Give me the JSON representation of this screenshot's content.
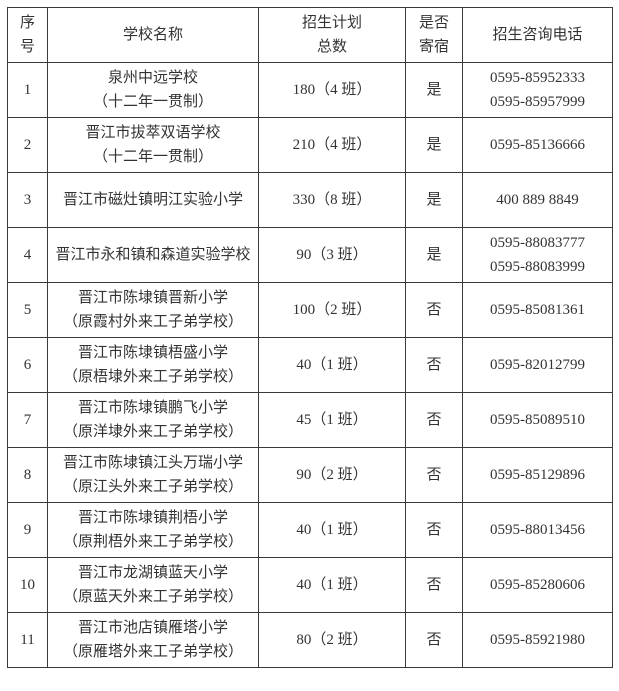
{
  "page": {
    "background_color": "#ffffff",
    "text_color": "#333333",
    "border_color": "#3a3a3a"
  },
  "table": {
    "headers": [
      {
        "key": "index",
        "label": "序\n号"
      },
      {
        "key": "school",
        "label": "学校名称"
      },
      {
        "key": "plan",
        "label": "招生计划\n总数"
      },
      {
        "key": "boarding",
        "label": "是否\n寄宿"
      },
      {
        "key": "phone",
        "label": "招生咨询电话"
      }
    ],
    "rows": [
      {
        "index": "1",
        "school": "泉州中远学校\n（十二年一贯制）",
        "plan": "180（4 班）",
        "boarding": "是",
        "phone": "0595-85952333\n0595-85957999",
        "phone_top_aligned": false
      },
      {
        "index": "2",
        "school": "晋江市拔萃双语学校\n（十二年一贯制）",
        "plan": "210（4 班）",
        "boarding": "是",
        "phone": "0595-85136666",
        "phone_top_aligned": false
      },
      {
        "index": "3",
        "school": "晋江市磁灶镇明江实验小学",
        "plan": "330（8 班）",
        "boarding": "是",
        "phone": "400 889 8849",
        "phone_top_aligned": false
      },
      {
        "index": "4",
        "school": "晋江市永和镇和森道实验学校",
        "plan": "90（3 班）",
        "boarding": "是",
        "phone": "0595-88083777\n0595-88083999",
        "phone_top_aligned": false
      },
      {
        "index": "5",
        "school": "晋江市陈埭镇晋新小学\n（原霞村外来工子弟学校）",
        "plan": "100（2 班）",
        "boarding": "否",
        "phone": "0595-85081361",
        "phone_top_aligned": true
      },
      {
        "index": "6",
        "school": "晋江市陈埭镇梧盛小学\n（原梧埭外来工子弟学校）",
        "plan": "40（1 班）",
        "boarding": "否",
        "phone": "0595-82012799",
        "phone_top_aligned": false
      },
      {
        "index": "7",
        "school": "晋江市陈埭镇鹏飞小学\n（原洋埭外来工子弟学校）",
        "plan": "45（1 班）",
        "boarding": "否",
        "phone": "0595-85089510",
        "phone_top_aligned": false
      },
      {
        "index": "8",
        "school": "晋江市陈埭镇江头万瑞小学\n（原江头外来工子弟学校）",
        "plan": "90（2 班）",
        "boarding": "否",
        "phone": "0595-85129896",
        "phone_top_aligned": false
      },
      {
        "index": "9",
        "school": "晋江市陈埭镇荆梧小学\n（原荆梧外来工子弟学校）",
        "plan": "40（1 班）",
        "boarding": "否",
        "phone": "0595-88013456",
        "phone_top_aligned": false
      },
      {
        "index": "10",
        "school": "晋江市龙湖镇蓝天小学\n（原蓝天外来工子弟学校）",
        "plan": "40（1 班）",
        "boarding": "否",
        "phone": "0595-85280606",
        "phone_top_aligned": false
      },
      {
        "index": "11",
        "school": "晋江市池店镇雁塔小学\n（原雁塔外来工子弟学校）",
        "plan": "80（2 班）",
        "boarding": "否",
        "phone": "0595-85921980",
        "phone_top_aligned": false
      }
    ]
  }
}
